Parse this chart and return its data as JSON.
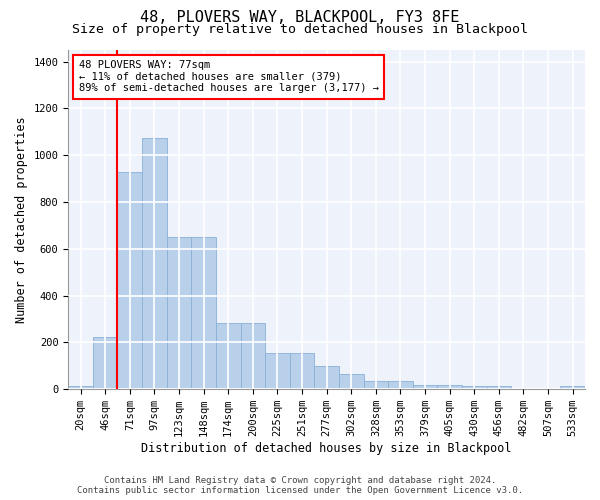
{
  "title": "48, PLOVERS WAY, BLACKPOOL, FY3 8FE",
  "subtitle": "Size of property relative to detached houses in Blackpool",
  "xlabel": "Distribution of detached houses by size in Blackpool",
  "ylabel": "Number of detached properties",
  "bar_color": "#b8d0ea",
  "bar_edge_color": "#8ab0d8",
  "background_color": "#eef2fa",
  "grid_color": "#ffffff",
  "categories": [
    "20sqm",
    "46sqm",
    "71sqm",
    "97sqm",
    "123sqm",
    "148sqm",
    "174sqm",
    "200sqm",
    "225sqm",
    "251sqm",
    "277sqm",
    "302sqm",
    "328sqm",
    "353sqm",
    "379sqm",
    "405sqm",
    "430sqm",
    "456sqm",
    "482sqm",
    "507sqm",
    "533sqm"
  ],
  "values": [
    15,
    225,
    930,
    1075,
    650,
    650,
    285,
    285,
    155,
    155,
    100,
    65,
    35,
    35,
    20,
    20,
    15,
    15,
    0,
    0,
    15
  ],
  "red_line_x": 2,
  "annotation_text": "48 PLOVERS WAY: 77sqm\n← 11% of detached houses are smaller (379)\n89% of semi-detached houses are larger (3,177) →",
  "ylim": [
    0,
    1450
  ],
  "yticks": [
    0,
    200,
    400,
    600,
    800,
    1000,
    1200,
    1400
  ],
  "footer_text": "Contains HM Land Registry data © Crown copyright and database right 2024.\nContains public sector information licensed under the Open Government Licence v3.0.",
  "title_fontsize": 11,
  "subtitle_fontsize": 9.5,
  "ylabel_fontsize": 8.5,
  "xlabel_fontsize": 8.5,
  "tick_fontsize": 7.5,
  "footer_fontsize": 6.5,
  "ann_fontsize": 7.5
}
